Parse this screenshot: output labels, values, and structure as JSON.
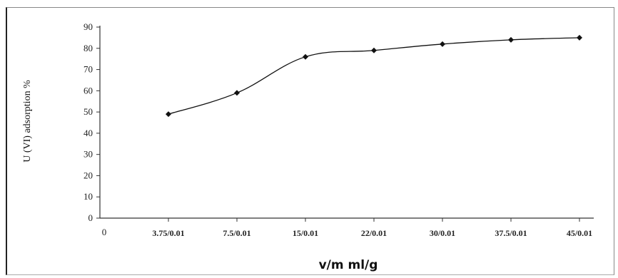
{
  "chart_data": {
    "type": "line",
    "title": "",
    "xlabel": "v/m ml/g",
    "ylabel": "U (VI) adsorption %",
    "origin_label": "0",
    "categories": [
      "3.75/0.01",
      "7.5/0.01",
      "15/0.01",
      "22/0.01",
      "30/0.01",
      "37.5/0.01",
      "45/0.01"
    ],
    "series": [
      {
        "values": [
          49,
          59,
          76,
          79,
          82,
          84,
          85
        ]
      }
    ],
    "ylim": [
      0,
      90
    ],
    "yticks": [
      0,
      10,
      20,
      30,
      40,
      50,
      60,
      70,
      80,
      90
    ],
    "grid": false,
    "legend": "none",
    "line_color": "#111111",
    "marker": "diamond"
  }
}
